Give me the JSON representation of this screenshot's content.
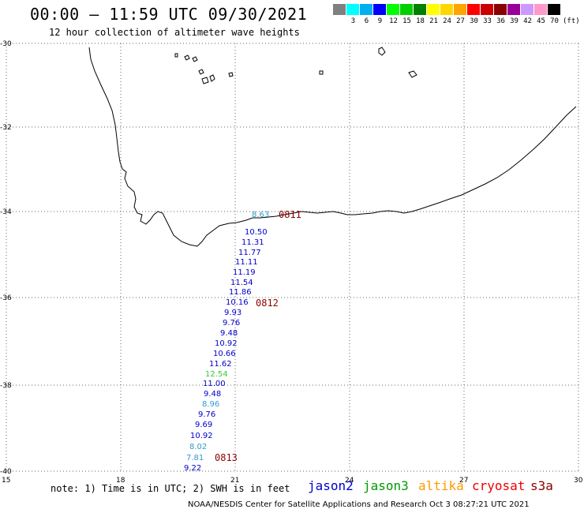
{
  "title": "00:00 – 11:59 UTC 09/30/2021",
  "subtitle": "12 hour collection of altimeter wave heights",
  "legend": {
    "colors": [
      "#808080",
      "#00ffff",
      "#00b0f0",
      "#0000ff",
      "#00ff00",
      "#00d000",
      "#008000",
      "#ffff00",
      "#ffd700",
      "#ffa500",
      "#ff0000",
      "#cc0000",
      "#8b0000",
      "#990099",
      "#cc99ff",
      "#ff99cc",
      "#000000"
    ],
    "labels": [
      "",
      "3",
      "6",
      "9",
      "12",
      "15",
      "18",
      "21",
      "24",
      "27",
      "30",
      "33",
      "36",
      "39",
      "42",
      "45",
      "70"
    ],
    "unit": "(ft)"
  },
  "map": {
    "lat_labels": [
      "-30",
      "-32",
      "-34",
      "-36",
      "-38",
      "-40"
    ],
    "lon_labels": [
      "15",
      "18",
      "21",
      "24",
      "27",
      "30"
    ],
    "coastline_color": "#000000",
    "grid_color": "#666666"
  },
  "track": {
    "points": [
      {
        "value": "8.63",
        "color": "#3399cc"
      },
      {
        "value": "10.50",
        "color": "#0000cc"
      },
      {
        "value": "11.31",
        "color": "#0000cc"
      },
      {
        "value": "11.77",
        "color": "#0000cc"
      },
      {
        "value": "11.11",
        "color": "#0000cc"
      },
      {
        "value": "11.19",
        "color": "#0000cc"
      },
      {
        "value": "11.54",
        "color": "#0000cc"
      },
      {
        "value": "11.86",
        "color": "#0000cc"
      },
      {
        "value": "10.16",
        "color": "#0000cc"
      },
      {
        "value": "9.93",
        "color": "#0000cc"
      },
      {
        "value": "9.76",
        "color": "#0000cc"
      },
      {
        "value": "9.48",
        "color": "#0000cc"
      },
      {
        "value": "10.92",
        "color": "#0000cc"
      },
      {
        "value": "10.66",
        "color": "#0000cc"
      },
      {
        "value": "11.62",
        "color": "#0000cc"
      },
      {
        "value": "12.54",
        "color": "#33cc33"
      },
      {
        "value": "11.00",
        "color": "#0000cc"
      },
      {
        "value": "9.48",
        "color": "#0000cc"
      },
      {
        "value": "8.96",
        "color": "#3399cc"
      },
      {
        "value": "9.76",
        "color": "#0000cc"
      },
      {
        "value": "9.69",
        "color": "#0000cc"
      },
      {
        "value": "10.92",
        "color": "#0000cc"
      },
      {
        "value": "8.02",
        "color": "#3399cc"
      },
      {
        "value": "7.81",
        "color": "#3399cc"
      },
      {
        "value": "9.22",
        "color": "#0000cc"
      }
    ],
    "time_labels": [
      "0811",
      "0812",
      "0813"
    ],
    "time_color": "#8b0000"
  },
  "footer": {
    "note": "note: 1) Time is in UTC; 2) SWH is in feet",
    "satellites": [
      {
        "name": "jason2",
        "color": "#0000cc"
      },
      {
        "name": "jason3",
        "color": "#009900"
      },
      {
        "name": "altika",
        "color": "#ff9900"
      },
      {
        "name": "cryosat",
        "color": "#ee0000"
      },
      {
        "name": "s3a",
        "color": "#8b0000"
      }
    ],
    "credit": "NOAA/NESDIS Center for Satellite Applications and Research    Oct  3 08:27:21 UTC 2021"
  }
}
